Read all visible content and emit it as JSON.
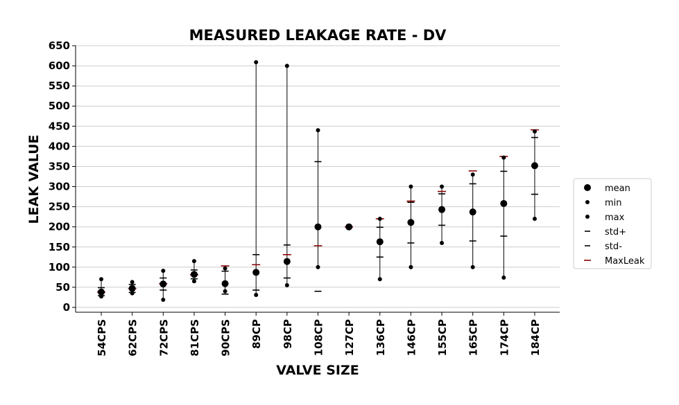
{
  "chart_data": {
    "type": "scatter",
    "title": "MEASURED LEAKAGE RATE - DV",
    "xlabel": "VALVE SIZE",
    "ylabel": "LEAK VALUE",
    "ylim": [
      -12,
      655
    ],
    "yticks": [
      0,
      50,
      100,
      150,
      200,
      250,
      300,
      350,
      400,
      450,
      500,
      550,
      600,
      650
    ],
    "grid": "horizontal",
    "legend_position": "outside-right",
    "categories": [
      "54CPS",
      "62CPS",
      "72CPS",
      "81CPS",
      "90CPS",
      "89CP",
      "98CP",
      "108CP",
      "127CP",
      "136CP",
      "146CP",
      "155CP",
      "165CP",
      "174CP",
      "184CP"
    ],
    "series": [
      {
        "name": "mean",
        "values": [
          38,
          47,
          58,
          82,
          59,
          87,
          114,
          200,
          200,
          163,
          211,
          243,
          237,
          258,
          352
        ]
      },
      {
        "name": "min",
        "values": [
          27,
          35,
          19,
          65,
          40,
          31,
          55,
          100,
          200,
          70,
          100,
          160,
          100,
          74,
          220
        ]
      },
      {
        "name": "max",
        "values": [
          70,
          63,
          91,
          115,
          97,
          609,
          600,
          440,
          200,
          220,
          300,
          300,
          330,
          372,
          437
        ]
      },
      {
        "name": "std+",
        "values": [
          49,
          57,
          73,
          93,
          90,
          131,
          155,
          362,
          200,
          199,
          261,
          282,
          307,
          338,
          422
        ]
      },
      {
        "name": "std-",
        "values": [
          29,
          37,
          43,
          71,
          33,
          43,
          73,
          40,
          200,
          125,
          160,
          204,
          165,
          177,
          281
        ]
      },
      {
        "name": "MaxLeak",
        "values": [
          38,
          47,
          59,
          81,
          103,
          106,
          131,
          153,
          200,
          220,
          264,
          288,
          339,
          375,
          441
        ]
      }
    ],
    "colors": {
      "points": "#000000",
      "maxleak": "#8b0000",
      "grid": "#cccccc"
    }
  }
}
